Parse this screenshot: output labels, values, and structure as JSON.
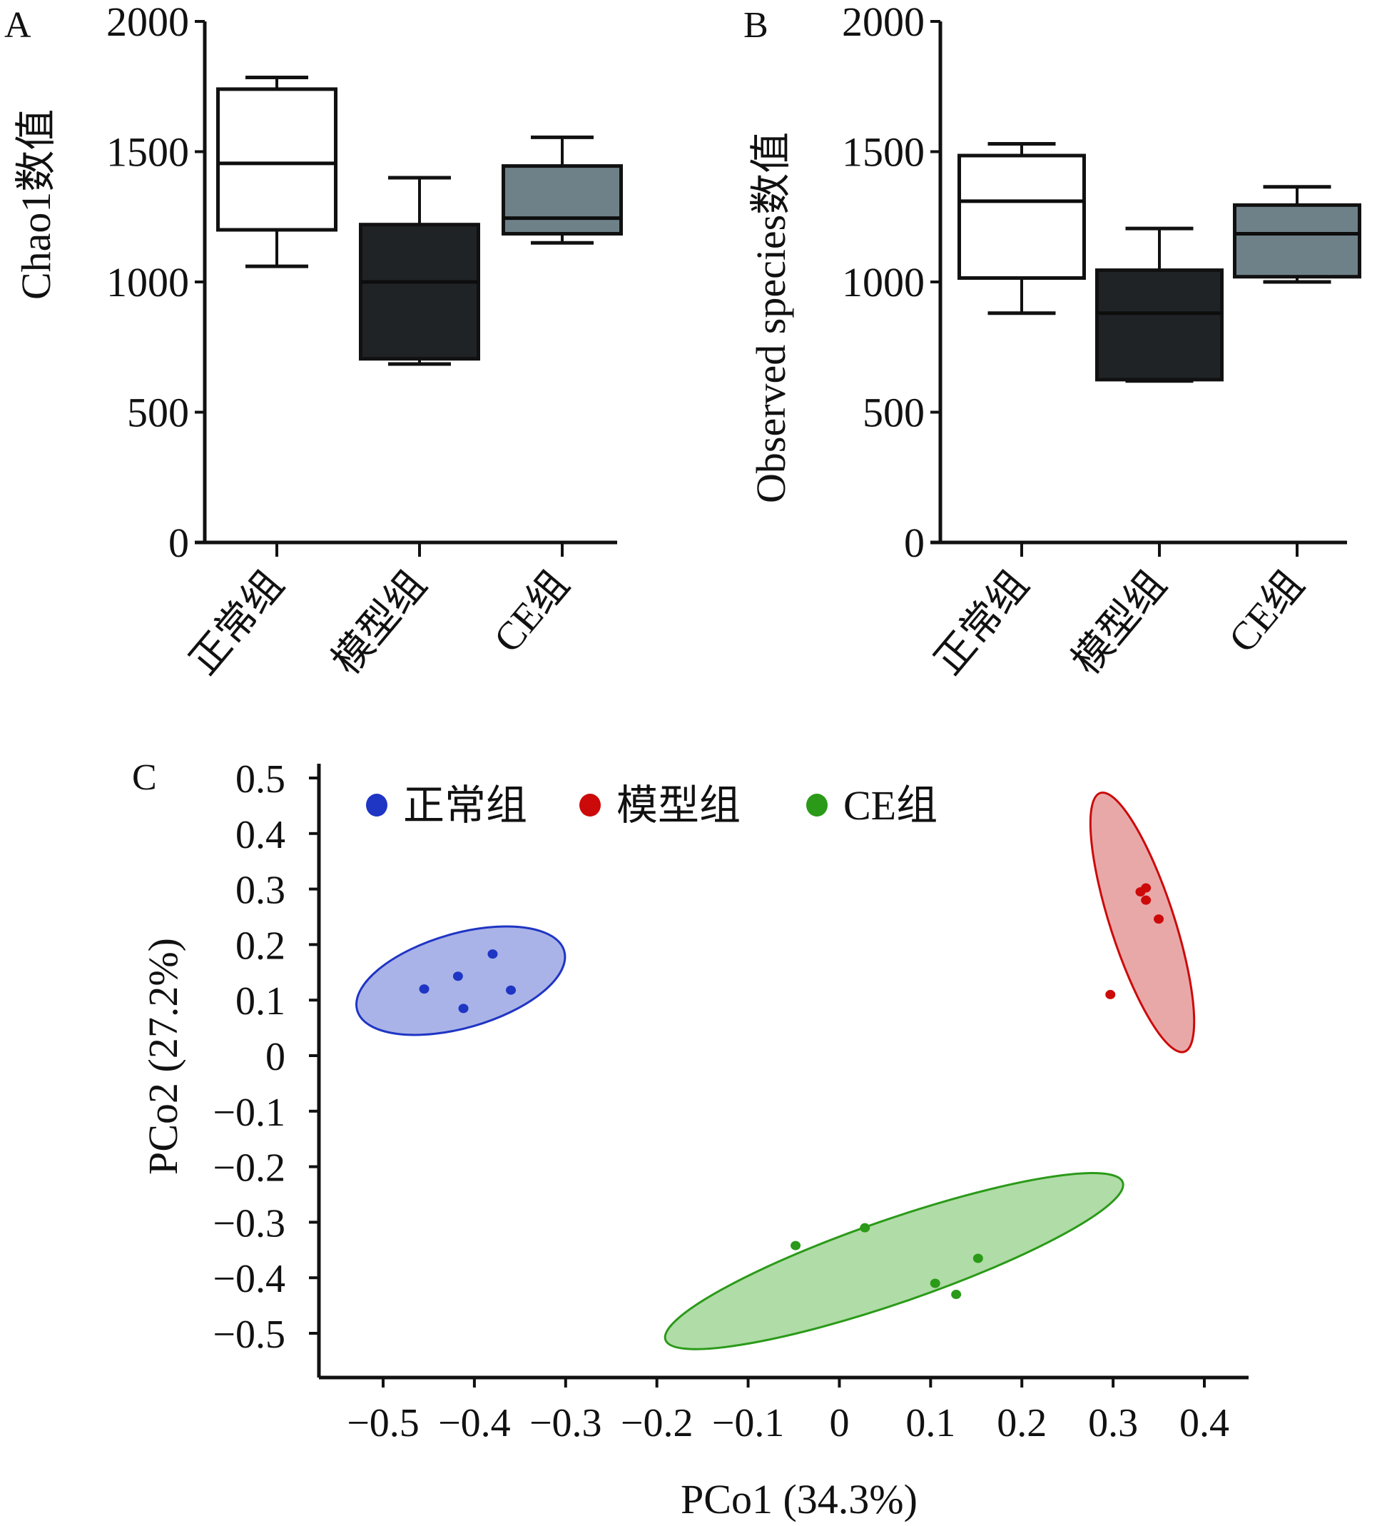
{
  "figure": {
    "panels": [
      "A",
      "B",
      "C"
    ]
  },
  "chart_data": [
    {
      "panel": "A",
      "type": "box",
      "title": "",
      "xlabel": "",
      "ylabel": "Chao1数值",
      "ylim": [
        0,
        2000
      ],
      "yticks": [
        0,
        500,
        1000,
        1500,
        2000
      ],
      "categories": [
        "正常组",
        "模型组",
        "CE组"
      ],
      "fill_colors": [
        "#ffffff",
        "#1f2326",
        "#6e8189"
      ],
      "boxes": [
        {
          "category": "正常组",
          "min": 1060,
          "q1": 1200,
          "median": 1455,
          "q3": 1740,
          "max": 1785
        },
        {
          "category": "模型组",
          "min": 685,
          "q1": 705,
          "median": 1000,
          "q3": 1220,
          "max": 1400
        },
        {
          "category": "CE组",
          "min": 1150,
          "q1": 1185,
          "median": 1245,
          "q3": 1445,
          "max": 1555
        }
      ]
    },
    {
      "panel": "B",
      "type": "box",
      "title": "",
      "xlabel": "",
      "ylabel": "Observed species数值",
      "ylim": [
        0,
        2000
      ],
      "yticks": [
        0,
        500,
        1000,
        1500,
        2000
      ],
      "categories": [
        "正常组",
        "模型组",
        "CE组"
      ],
      "fill_colors": [
        "#ffffff",
        "#1f2326",
        "#6e8189"
      ],
      "boxes": [
        {
          "category": "正常组",
          "min": 880,
          "q1": 1015,
          "median": 1310,
          "q3": 1485,
          "max": 1530
        },
        {
          "category": "模型组",
          "min": 620,
          "q1": 625,
          "median": 880,
          "q3": 1045,
          "max": 1205
        },
        {
          "category": "CE组",
          "min": 1000,
          "q1": 1020,
          "median": 1185,
          "q3": 1295,
          "max": 1365
        }
      ]
    },
    {
      "panel": "C",
      "type": "scatter",
      "title": "",
      "xlabel": "PCo1 (34.3%)",
      "ylabel": "PCo2 (27.2%)",
      "xlim": [
        -0.57,
        0.43
      ],
      "ylim": [
        -0.57,
        0.52
      ],
      "xticks": [
        -0.5,
        -0.4,
        -0.3,
        -0.2,
        -0.1,
        0,
        0.1,
        0.2,
        0.3,
        0.4
      ],
      "yticks": [
        0.5,
        0.4,
        0.3,
        0.2,
        0.1,
        0,
        -0.1,
        -0.2,
        -0.3,
        -0.4,
        -0.5
      ],
      "legend_position": "top-left",
      "series": [
        {
          "name": "正常组",
          "color": "#1f35c4",
          "ellipse_fill": "#a5afe6",
          "points": [
            [
              -0.455,
              0.12
            ],
            [
              -0.418,
              0.143
            ],
            [
              -0.38,
              0.183
            ],
            [
              -0.36,
              0.118
            ],
            [
              -0.412,
              0.085
            ]
          ],
          "ellipse": {
            "cx": -0.415,
            "cy": 0.135,
            "rx": 0.118,
            "ry": 0.085,
            "angle_deg": 16
          }
        },
        {
          "name": "模型组",
          "color": "#cc0a0a",
          "ellipse_fill": "#e8a3a3",
          "points": [
            [
              0.33,
              0.295
            ],
            [
              0.336,
              0.302
            ],
            [
              0.336,
              0.28
            ],
            [
              0.35,
              0.246
            ],
            [
              0.297,
              0.11
            ]
          ],
          "ellipse": {
            "cx": 0.332,
            "cy": 0.24,
            "rx": 0.035,
            "ry": 0.245,
            "angle_deg": 18
          }
        },
        {
          "name": "CE组",
          "color": "#2a9a18",
          "ellipse_fill": "#acdaa2",
          "points": [
            [
              -0.048,
              -0.342
            ],
            [
              0.028,
              -0.31
            ],
            [
              0.152,
              -0.365
            ],
            [
              0.105,
              -0.41
            ],
            [
              0.128,
              -0.43
            ]
          ],
          "ellipse": {
            "cx": 0.06,
            "cy": -0.37,
            "rx": 0.265,
            "ry": 0.075,
            "angle_deg": 19
          }
        }
      ]
    }
  ]
}
